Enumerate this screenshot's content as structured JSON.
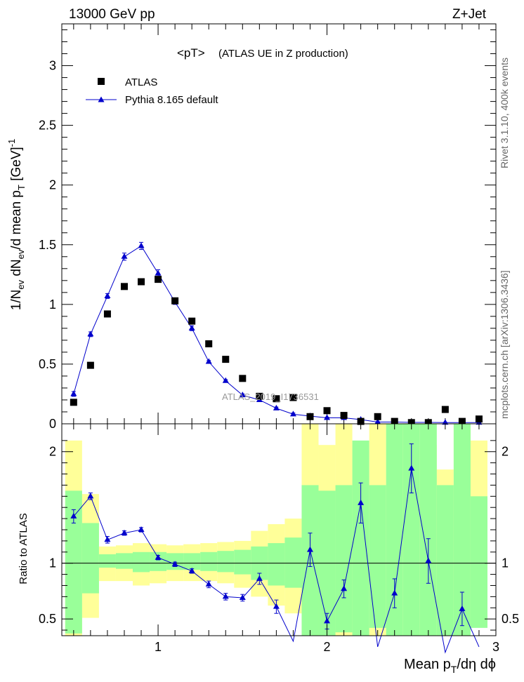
{
  "header": {
    "left": "13000 GeV pp",
    "right": "Z+Jet"
  },
  "side_labels": {
    "rivet": "Rivet 3.1.10,  400k events",
    "mcplots": "mcplots.cern.ch [arXiv:1306.3436]"
  },
  "watermark": "ATLAS_2019_I1736531",
  "chart_data": [
    {
      "type": "scatter",
      "title": "<pT>",
      "subtitle": "(ATLAS UE in Z production)",
      "ylabel_parts": {
        "main": "1/N",
        "ev": "ev",
        "mid": " dN",
        "ev2": "ev",
        "tail": "/d mean p",
        "T": "T",
        "unit": " [GeV]",
        "exp": "-1"
      },
      "xlim": [
        0.43,
        3.0
      ],
      "ylim": [
        0,
        3.35
      ],
      "yticks": [
        0,
        0.5,
        1,
        1.5,
        2,
        2.5,
        3
      ],
      "ytick_labels": [
        "0",
        "0.5",
        "1",
        "1.5",
        "2",
        "2.5",
        "3"
      ],
      "legend": {
        "placement": "top-left",
        "atlas": "ATLAS",
        "pythia": "Pythia 8.165 default"
      },
      "series": [
        {
          "name": "ATLAS",
          "marker": "square",
          "color": "#000000",
          "x": [
            0.5,
            0.6,
            0.7,
            0.8,
            0.9,
            1.0,
            1.1,
            1.2,
            1.3,
            1.4,
            1.5,
            1.6,
            1.7,
            1.8,
            1.9,
            2.0,
            2.1,
            2.2,
            2.3,
            2.4,
            2.5,
            2.6,
            2.7,
            2.8,
            2.9
          ],
          "y": [
            0.18,
            0.49,
            0.92,
            1.15,
            1.19,
            1.21,
            1.03,
            0.86,
            0.67,
            0.54,
            0.38,
            0.23,
            0.21,
            0.22,
            0.06,
            0.11,
            0.07,
            0.02,
            0.06,
            0.02,
            0.01,
            0.01,
            0.12,
            0.02,
            0.04
          ]
        },
        {
          "name": "Pythia 8.165 default",
          "marker": "triangle",
          "color": "#0000cc",
          "x": [
            0.5,
            0.6,
            0.7,
            0.8,
            0.9,
            1.0,
            1.1,
            1.2,
            1.3,
            1.4,
            1.5,
            1.6,
            1.7,
            1.8,
            1.9,
            2.0,
            2.1,
            2.2,
            2.3,
            2.4,
            2.5,
            2.6,
            2.7,
            2.8,
            2.9
          ],
          "y": [
            0.25,
            0.75,
            1.07,
            1.4,
            1.49,
            1.26,
            1.02,
            0.8,
            0.52,
            0.36,
            0.24,
            0.2,
            0.13,
            0.08,
            0.065,
            0.05,
            0.05,
            0.035,
            0.015,
            0.015,
            0.012,
            0.012,
            0.01,
            0.01,
            0.01
          ],
          "err": [
            0.02,
            0.02,
            0.02,
            0.03,
            0.03,
            0.03,
            0.02,
            0.02,
            0.01,
            0.01,
            0.01,
            0.01,
            0.01,
            0.01,
            0.005,
            0.005,
            0.005,
            0.004,
            0.003,
            0.003,
            0.002,
            0.002,
            0.002,
            0.002,
            0.002
          ]
        }
      ]
    },
    {
      "type": "line",
      "ylabel": "Ratio to ATLAS",
      "xlabel_parts": {
        "main": "Mean p",
        "T": "T",
        "tail": "/dη dϕ"
      },
      "xlim": [
        0.43,
        3.0
      ],
      "ylim": [
        0.35,
        2.25
      ],
      "xticks": [
        1,
        2,
        3
      ],
      "xtick_labels": [
        "1",
        "2",
        "3"
      ],
      "yticks": [
        0.5,
        1,
        2
      ],
      "ytick_labels": [
        "0.5",
        "1",
        "2"
      ],
      "reference_line": 1,
      "bands": {
        "bin_edges": [
          0.45,
          0.55,
          0.65,
          0.75,
          0.85,
          0.95,
          1.05,
          1.15,
          1.25,
          1.35,
          1.45,
          1.55,
          1.65,
          1.75,
          1.85,
          1.95,
          2.05,
          2.15,
          2.25,
          2.35,
          2.45,
          2.55,
          2.65,
          2.75,
          2.85,
          2.95
        ],
        "yellow": [
          [
            0.35,
            2.1
          ],
          [
            0.51,
            1.62
          ],
          [
            0.84,
            1.15
          ],
          [
            0.84,
            1.16
          ],
          [
            0.8,
            1.18
          ],
          [
            0.82,
            1.17
          ],
          [
            0.84,
            1.16
          ],
          [
            0.84,
            1.17
          ],
          [
            0.84,
            1.18
          ],
          [
            0.82,
            1.19
          ],
          [
            0.78,
            1.2
          ],
          [
            0.7,
            1.29
          ],
          [
            0.62,
            1.35
          ],
          [
            0.55,
            1.4
          ],
          [
            0.35,
            2.25
          ],
          [
            0.35,
            2.06
          ],
          [
            0.35,
            2.25
          ],
          [
            0.35,
            2.06
          ],
          [
            0.35,
            2.25
          ],
          [
            0.35,
            2.25
          ],
          [
            0.35,
            2.25
          ],
          [
            0.35,
            2.06
          ],
          [
            0.58,
            1.84
          ],
          [
            0.35,
            2.25
          ],
          [
            0.45,
            2.1
          ]
        ],
        "green": [
          [
            0.37,
            1.65
          ],
          [
            0.73,
            1.36
          ],
          [
            0.96,
            1.08
          ],
          [
            0.95,
            1.09
          ],
          [
            0.92,
            1.1
          ],
          [
            0.93,
            1.1
          ],
          [
            0.94,
            1.09
          ],
          [
            0.94,
            1.09
          ],
          [
            0.93,
            1.1
          ],
          [
            0.92,
            1.11
          ],
          [
            0.9,
            1.12
          ],
          [
            0.85,
            1.15
          ],
          [
            0.8,
            1.18
          ],
          [
            0.78,
            1.23
          ],
          [
            0.35,
            1.7
          ],
          [
            0.35,
            1.65
          ],
          [
            0.38,
            1.7
          ],
          [
            0.35,
            2.1
          ],
          [
            0.42,
            1.7
          ],
          [
            0.35,
            2.25
          ],
          [
            0.35,
            2.25
          ],
          [
            0.35,
            2.25
          ],
          [
            0.35,
            1.7
          ],
          [
            0.35,
            2.25
          ],
          [
            0.42,
            1.6
          ]
        ]
      },
      "series": [
        {
          "name": "Pythia 8.165 default",
          "color": "#0000cc",
          "x": [
            0.5,
            0.6,
            0.7,
            0.8,
            0.9,
            1.0,
            1.1,
            1.2,
            1.3,
            1.4,
            1.5,
            1.6,
            1.7,
            1.8,
            1.9,
            2.0,
            2.1,
            2.2,
            2.3,
            2.4,
            2.5,
            2.6,
            2.7,
            2.8,
            2.9
          ],
          "y": [
            1.42,
            1.6,
            1.21,
            1.27,
            1.3,
            1.05,
            0.99,
            0.93,
            0.81,
            0.7,
            0.69,
            0.86,
            0.61,
            0.3,
            1.12,
            0.48,
            0.77,
            1.54,
            0.25,
            0.73,
            1.85,
            1.02,
            0.2,
            0.59,
            0.25
          ],
          "err": [
            0.06,
            0.03,
            0.03,
            0.02,
            0.02,
            0.02,
            0.02,
            0.02,
            0.03,
            0.03,
            0.03,
            0.05,
            0.06,
            0.08,
            0.15,
            0.07,
            0.08,
            0.18,
            0.1,
            0.13,
            0.22,
            0.2,
            0.1,
            0.15,
            0.1
          ]
        }
      ]
    }
  ]
}
